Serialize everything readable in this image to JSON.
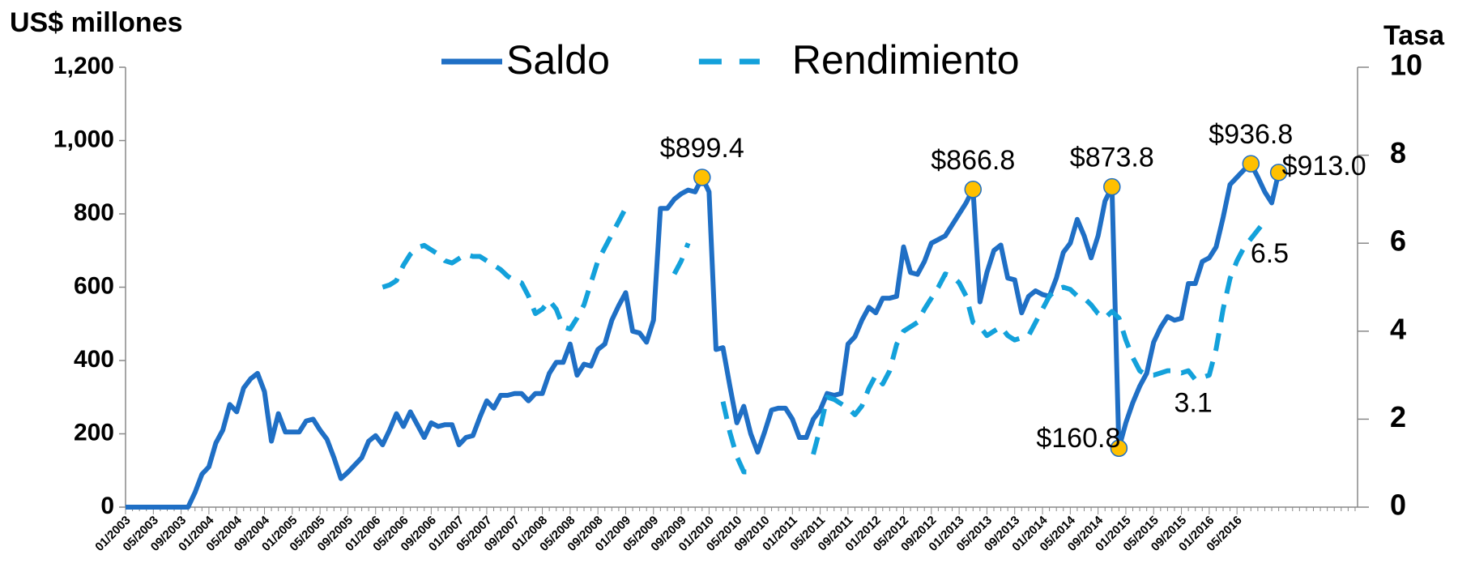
{
  "chart_data": {
    "type": "line",
    "y_label": "US$ millones",
    "y2_label": "Tasa",
    "legend": "top",
    "categories": [
      "01/2003",
      null,
      null,
      null,
      "05/2003",
      null,
      null,
      null,
      "09/2003",
      null,
      null,
      null,
      "01/2004",
      null,
      null,
      null,
      "05/2004",
      null,
      null,
      null,
      "09/2004",
      null,
      null,
      null,
      "01/2005",
      null,
      null,
      null,
      "05/2005",
      null,
      null,
      null,
      "09/2005",
      null,
      null,
      null,
      "01/2006",
      null,
      null,
      null,
      "05/2006",
      null,
      null,
      null,
      "09/2006",
      null,
      null,
      null,
      "01/2007",
      null,
      null,
      null,
      "05/2007",
      null,
      null,
      null,
      "09/2007",
      null,
      null,
      null,
      "01/2008",
      null,
      null,
      null,
      "05/2008",
      null,
      null,
      null,
      "09/2008",
      null,
      null,
      null,
      "01/2009",
      null,
      null,
      null,
      "05/2009",
      null,
      null,
      null,
      "09/2009",
      null,
      null,
      null,
      "01/2010",
      null,
      null,
      null,
      "05/2010",
      null,
      null,
      null,
      "09/2010",
      null,
      null,
      null,
      "01/2011",
      null,
      null,
      null,
      "05/2011",
      null,
      null,
      null,
      "09/2011",
      null,
      null,
      null,
      "01/2012",
      null,
      null,
      null,
      "05/2012",
      null,
      null,
      null,
      "09/2012",
      null,
      null,
      null,
      "01/2013",
      null,
      null,
      null,
      "05/2013",
      null,
      null,
      null,
      "09/2013",
      null,
      null,
      null,
      "01/2014",
      null,
      null,
      null,
      "05/2014",
      null,
      null,
      null,
      "09/2014",
      null,
      null,
      null,
      "01/2015",
      null,
      null,
      null,
      "05/2015",
      null,
      null,
      null,
      "09/2015",
      null,
      null,
      null,
      "01/2016",
      null,
      null,
      null,
      "05/2016",
      null,
      null,
      null,
      null,
      null,
      null,
      null
    ],
    "series": [
      {
        "name": "Saldo",
        "color": "#1f6fc5",
        "dash": false,
        "axis": "y",
        "values": [
          0,
          0,
          0,
          0,
          0,
          0,
          0,
          0,
          0,
          0,
          40,
          90,
          110,
          175,
          210,
          280,
          260,
          325,
          350,
          365,
          315,
          180,
          255,
          205,
          205,
          205,
          235,
          240,
          210,
          185,
          135,
          78,
          95,
          115,
          135,
          180,
          195,
          170,
          210,
          255,
          220,
          260,
          225,
          190,
          230,
          220,
          225,
          225,
          170,
          190,
          195,
          245,
          290,
          270,
          305,
          305,
          310,
          310,
          290,
          310,
          310,
          365,
          395,
          395,
          445,
          360,
          390,
          385,
          430,
          445,
          510,
          550,
          585,
          480,
          475,
          450,
          510,
          815,
          815,
          840,
          855,
          865,
          860,
          899.4,
          860,
          430,
          435,
          330,
          230,
          275,
          200,
          150,
          205,
          265,
          270,
          270,
          240,
          190,
          190,
          240,
          265,
          310,
          305,
          310,
          445,
          465,
          510,
          545,
          530,
          570,
          570,
          575,
          710,
          640,
          635,
          670,
          720,
          730,
          740,
          770,
          800,
          830,
          866.8,
          560,
          640,
          700,
          715,
          625,
          620,
          530,
          575,
          590,
          580,
          575,
          625,
          695,
          720,
          785,
          740,
          680,
          740,
          835,
          873.8,
          160.8,
          230,
          285,
          330,
          365,
          450,
          490,
          520,
          510,
          515,
          610,
          610,
          670,
          680,
          710,
          790,
          880,
          900,
          920,
          936.8,
          900,
          860,
          830,
          913.0,
          null
        ],
        "value_labels": [
          null,
          null,
          null,
          null,
          null,
          null,
          null,
          null,
          null,
          null,
          null,
          null,
          null,
          null,
          null,
          null,
          null,
          null,
          null,
          null,
          null,
          null,
          null,
          null,
          null,
          null,
          null,
          null,
          null,
          null,
          null,
          null,
          null,
          null,
          null,
          null,
          null,
          null,
          null,
          null,
          null,
          null,
          null,
          null,
          null,
          null,
          null,
          null,
          null,
          null,
          null,
          null,
          null,
          null,
          null,
          null,
          null,
          null,
          null,
          null,
          null,
          null,
          null,
          null,
          null,
          null,
          null,
          null,
          null,
          null,
          null,
          null,
          null,
          null,
          null,
          null,
          null,
          null,
          null,
          null,
          null,
          null,
          null,
          "$899.4",
          null,
          null,
          null,
          null,
          null,
          null,
          null,
          null,
          null,
          null,
          null,
          null,
          null,
          null,
          null,
          null,
          null,
          null,
          null,
          null,
          null,
          null,
          null,
          null,
          null,
          null,
          null,
          null,
          null,
          null,
          null,
          null,
          null,
          null,
          null,
          null,
          null,
          null,
          "$866.8",
          null,
          null,
          null,
          null,
          null,
          null,
          null,
          null,
          null,
          null,
          null,
          null,
          null,
          null,
          null,
          null,
          null,
          null,
          null,
          "$873.8",
          "$160.8",
          null,
          null,
          null,
          null,
          null,
          null,
          null,
          null,
          null,
          null,
          null,
          null,
          null,
          null,
          null,
          null,
          null,
          null,
          "$936.8",
          null,
          null,
          null,
          "$913.0",
          null
        ]
      },
      {
        "name": "Rendimiento",
        "color": "#13a1db",
        "dash": true,
        "axis": "y2",
        "values": [
          null,
          null,
          null,
          null,
          null,
          null,
          null,
          null,
          null,
          null,
          null,
          null,
          null,
          null,
          null,
          null,
          null,
          null,
          null,
          null,
          null,
          null,
          null,
          null,
          null,
          null,
          null,
          null,
          null,
          null,
          null,
          null,
          null,
          null,
          null,
          null,
          null,
          5.0,
          5.05,
          5.15,
          5.5,
          5.75,
          5.9,
          5.95,
          5.85,
          5.75,
          5.6,
          5.55,
          5.65,
          5.75,
          5.7,
          5.7,
          5.6,
          5.5,
          5.4,
          5.25,
          5.15,
          5.1,
          4.8,
          4.4,
          4.5,
          4.7,
          4.5,
          4.1,
          4.05,
          4.3,
          4.6,
          5.1,
          5.6,
          5.9,
          6.2,
          6.5,
          6.8,
          null,
          null,
          null,
          null,
          null,
          null,
          5.3,
          5.6,
          6.0,
          null,
          null,
          null,
          null,
          2.4,
          1.7,
          1.15,
          0.8,
          0.8,
          null,
          null,
          null,
          null,
          null,
          null,
          null,
          null,
          1.2,
          1.8,
          2.5,
          2.45,
          2.35,
          2.25,
          2.1,
          2.3,
          2.7,
          3.0,
          2.8,
          3.1,
          3.7,
          4.0,
          4.1,
          4.2,
          4.5,
          4.75,
          5.0,
          5.3,
          5.25,
          5.1,
          4.8,
          4.2,
          4.1,
          3.9,
          4.0,
          4.1,
          3.9,
          3.8,
          3.85,
          3.9,
          4.2,
          4.5,
          4.8,
          4.95,
          5.0,
          4.95,
          4.8,
          4.75,
          4.6,
          4.4,
          4.3,
          4.45,
          4.3,
          3.8,
          3.4,
          3.1,
          3.0,
          3.0,
          3.05,
          3.1,
          3.1,
          3.05,
          3.1,
          2.9,
          2.95,
          3.0,
          3.6,
          4.5,
          5.2,
          5.6,
          5.9,
          6.1,
          6.3,
          6.5,
          null,
          null,
          null
        ],
        "value_labels": [
          null,
          null,
          null,
          null,
          null,
          null,
          null,
          null,
          null,
          null,
          null,
          null,
          null,
          null,
          null,
          null,
          null,
          null,
          null,
          null,
          null,
          null,
          null,
          null,
          null,
          null,
          null,
          null,
          null,
          null,
          null,
          null,
          null,
          null,
          null,
          null,
          null,
          null,
          null,
          null,
          null,
          null,
          null,
          null,
          null,
          null,
          null,
          null,
          null,
          null,
          null,
          null,
          null,
          null,
          null,
          null,
          null,
          null,
          null,
          null,
          null,
          null,
          null,
          null,
          null,
          null,
          null,
          null,
          null,
          null,
          null,
          null,
          null,
          null,
          null,
          null,
          null,
          null,
          null,
          null,
          null,
          null,
          null,
          null,
          null,
          null,
          null,
          null,
          null,
          null,
          null,
          null,
          null,
          null,
          null,
          null,
          null,
          null,
          null,
          null,
          null,
          null,
          null,
          null,
          null,
          null,
          null,
          null,
          null,
          null,
          null,
          null,
          null,
          null,
          null,
          null,
          null,
          null,
          null,
          null,
          null,
          null,
          null,
          null,
          null,
          null,
          null,
          null,
          null,
          null,
          null,
          null,
          null,
          null,
          null,
          null,
          null,
          null,
          null,
          null,
          null,
          null,
          null,
          null,
          null,
          null,
          null,
          null,
          null,
          null,
          null,
          null,
          null,
          "3.1",
          null,
          null,
          null,
          null,
          null,
          null,
          null,
          null,
          null,
          null,
          "6.5",
          null,
          null,
          null
        ]
      }
    ],
    "marker_color": "#ffc000",
    "ylim": [
      0,
      1200
    ],
    "yticks": [
      0,
      200,
      400,
      600,
      800,
      {
        "value": 1000,
        "label": "1,000"
      },
      {
        "value": 1200,
        "label": "1,200"
      }
    ],
    "y2lim": [
      0,
      10
    ],
    "y2ticks": [
      0,
      2,
      4,
      6,
      8,
      10
    ]
  }
}
